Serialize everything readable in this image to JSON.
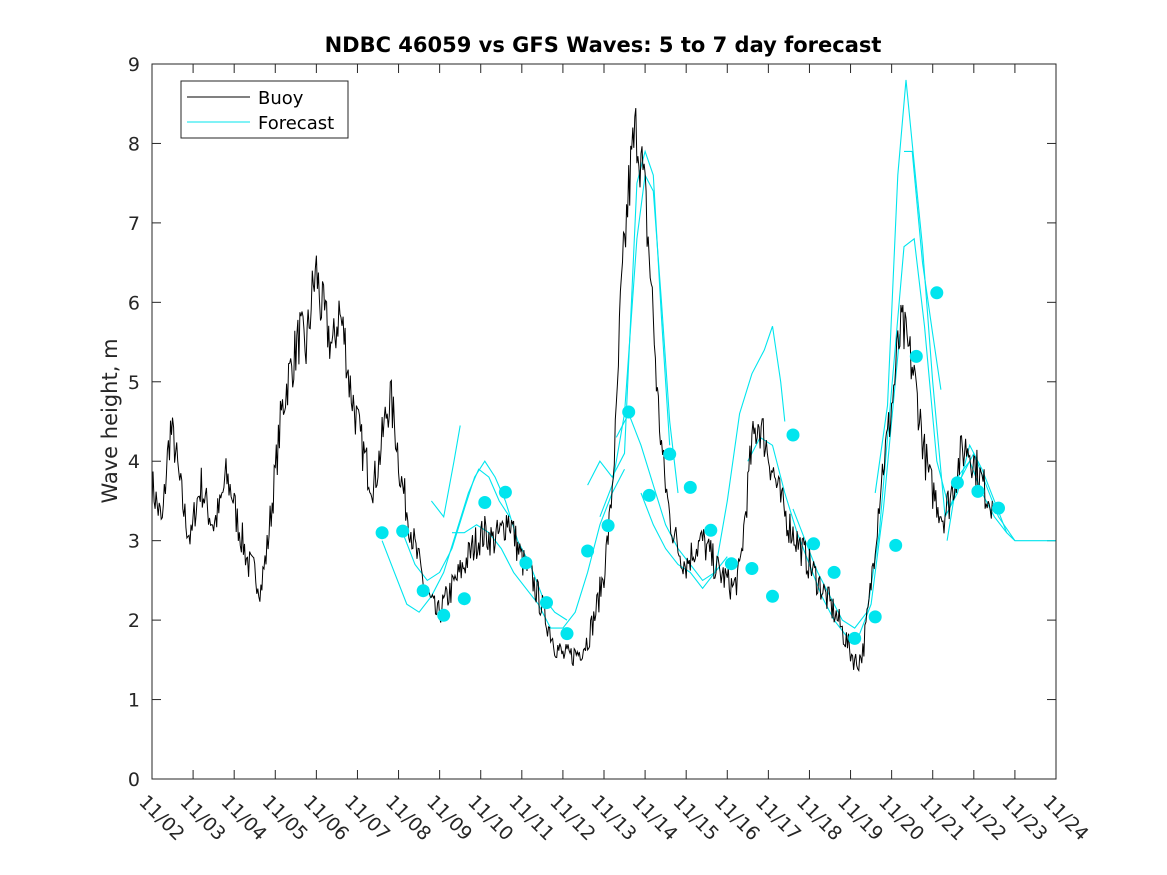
{
  "chart_data": {
    "type": "line",
    "title": "NDBC 46059 vs GFS Waves: 5 to 7 day forecast",
    "xlabel": "",
    "ylabel": "Wave height, m",
    "xlim": [
      0,
      22
    ],
    "ylim": [
      0,
      9
    ],
    "x_ticks": [
      "11/02",
      "11/03",
      "11/04",
      "11/05",
      "11/06",
      "11/07",
      "11/08",
      "11/09",
      "11/10",
      "11/11",
      "11/12",
      "11/13",
      "11/14",
      "11/15",
      "11/16",
      "11/17",
      "11/18",
      "11/19",
      "11/20",
      "11/21",
      "11/22",
      "11/23",
      "11/24"
    ],
    "y_ticks": [
      0,
      1,
      2,
      3,
      4,
      5,
      6,
      7,
      8,
      9
    ],
    "legend": {
      "position": "top-left",
      "entries": [
        "Buoy",
        "Forecast"
      ]
    },
    "colors": {
      "buoy": "#000000",
      "forecast": "#00e5ee"
    },
    "buoy_series": {
      "name": "Buoy",
      "points": [
        [
          0.0,
          3.7
        ],
        [
          0.1,
          3.5
        ],
        [
          0.25,
          3.2
        ],
        [
          0.35,
          3.9
        ],
        [
          0.45,
          4.4
        ],
        [
          0.55,
          4.2
        ],
        [
          0.65,
          3.8
        ],
        [
          0.8,
          3.3
        ],
        [
          0.95,
          3.0
        ],
        [
          1.05,
          3.4
        ],
        [
          1.2,
          3.7
        ],
        [
          1.35,
          3.4
        ],
        [
          1.5,
          3.2
        ],
        [
          1.65,
          3.4
        ],
        [
          1.8,
          3.8
        ],
        [
          1.95,
          3.6
        ],
        [
          2.05,
          3.3
        ],
        [
          2.2,
          3.0
        ],
        [
          2.35,
          2.7
        ],
        [
          2.5,
          2.6
        ],
        [
          2.65,
          2.4
        ],
        [
          2.8,
          2.9
        ],
        [
          2.95,
          3.6
        ],
        [
          3.05,
          4.1
        ],
        [
          3.15,
          4.6
        ],
        [
          3.3,
          5.0
        ],
        [
          3.45,
          5.3
        ],
        [
          3.6,
          5.6
        ],
        [
          3.75,
          5.4
        ],
        [
          3.9,
          6.1
        ],
        [
          4.0,
          6.4
        ],
        [
          4.1,
          6.0
        ],
        [
          4.25,
          5.7
        ],
        [
          4.4,
          5.4
        ],
        [
          4.55,
          5.9
        ],
        [
          4.7,
          5.5
        ],
        [
          4.8,
          5.0
        ],
        [
          4.95,
          4.6
        ],
        [
          5.1,
          4.2
        ],
        [
          5.25,
          3.9
        ],
        [
          5.4,
          3.7
        ],
        [
          5.55,
          4.1
        ],
        [
          5.7,
          4.6
        ],
        [
          5.8,
          4.8
        ],
        [
          5.95,
          4.3
        ],
        [
          6.05,
          3.8
        ],
        [
          6.2,
          3.4
        ],
        [
          6.4,
          2.9
        ],
        [
          6.6,
          2.5
        ],
        [
          6.8,
          2.2
        ],
        [
          6.95,
          2.05
        ],
        [
          7.1,
          2.2
        ],
        [
          7.3,
          2.4
        ],
        [
          7.5,
          2.6
        ],
        [
          7.7,
          2.8
        ],
        [
          7.9,
          3.0
        ],
        [
          8.1,
          3.1
        ],
        [
          8.3,
          3.0
        ],
        [
          8.5,
          3.1
        ],
        [
          8.65,
          3.3
        ],
        [
          8.75,
          3.2
        ],
        [
          8.9,
          2.9
        ],
        [
          9.05,
          2.7
        ],
        [
          9.2,
          2.6
        ],
        [
          9.4,
          2.3
        ],
        [
          9.6,
          2.0
        ],
        [
          9.8,
          1.7
        ],
        [
          10.0,
          1.55
        ],
        [
          10.2,
          1.55
        ],
        [
          10.4,
          1.6
        ],
        [
          10.6,
          1.75
        ],
        [
          10.8,
          2.1
        ],
        [
          11.0,
          2.6
        ],
        [
          11.15,
          3.3
        ],
        [
          11.3,
          4.5
        ],
        [
          11.4,
          5.9
        ],
        [
          11.5,
          6.7
        ],
        [
          11.6,
          7.4
        ],
        [
          11.7,
          7.9
        ],
        [
          11.8,
          8.2
        ],
        [
          11.9,
          7.8
        ],
        [
          12.0,
          7.3
        ],
        [
          12.1,
          6.6
        ],
        [
          12.2,
          5.8
        ],
        [
          12.3,
          4.8
        ],
        [
          12.45,
          3.9
        ],
        [
          12.6,
          3.3
        ],
        [
          12.8,
          2.9
        ],
        [
          13.0,
          2.7
        ],
        [
          13.2,
          2.9
        ],
        [
          13.4,
          3.0
        ],
        [
          13.6,
          2.8
        ],
        [
          13.8,
          2.6
        ],
        [
          14.0,
          2.5
        ],
        [
          14.15,
          2.4
        ],
        [
          14.3,
          2.6
        ],
        [
          14.45,
          3.4
        ],
        [
          14.6,
          4.2
        ],
        [
          14.75,
          4.5
        ],
        [
          14.9,
          4.3
        ],
        [
          15.1,
          3.9
        ],
        [
          15.3,
          3.5
        ],
        [
          15.5,
          3.2
        ],
        [
          15.7,
          3.0
        ],
        [
          15.9,
          2.8
        ],
        [
          16.1,
          2.6
        ],
        [
          16.3,
          2.4
        ],
        [
          16.5,
          2.2
        ],
        [
          16.7,
          2.0
        ],
        [
          16.85,
          1.8
        ],
        [
          17.0,
          1.6
        ],
        [
          17.15,
          1.45
        ],
        [
          17.3,
          1.6
        ],
        [
          17.45,
          2.2
        ],
        [
          17.6,
          3.0
        ],
        [
          17.75,
          3.8
        ],
        [
          17.9,
          4.3
        ],
        [
          18.05,
          4.9
        ],
        [
          18.15,
          5.4
        ],
        [
          18.25,
          5.7
        ],
        [
          18.35,
          5.5
        ],
        [
          18.5,
          5.2
        ],
        [
          18.65,
          4.7
        ],
        [
          18.8,
          4.1
        ],
        [
          18.95,
          3.7
        ],
        [
          19.1,
          3.5
        ],
        [
          19.25,
          3.3
        ],
        [
          19.4,
          3.5
        ],
        [
          19.55,
          3.8
        ],
        [
          19.7,
          4.1
        ],
        [
          19.85,
          4.2
        ],
        [
          20.0,
          4.0
        ],
        [
          20.15,
          3.8
        ],
        [
          20.3,
          3.6
        ],
        [
          20.45,
          3.5
        ]
      ]
    },
    "forecast_series": [
      {
        "name": "Forecast",
        "points": [
          [
            5.6,
            3.0
          ],
          [
            5.9,
            2.6
          ],
          [
            6.2,
            2.2
          ],
          [
            6.5,
            2.1
          ],
          [
            6.8,
            2.3
          ],
          [
            7.1,
            2.6
          ],
          [
            7.4,
            3.1
          ],
          [
            7.7,
            3.6
          ],
          [
            7.95,
            3.9
          ],
          [
            8.2,
            3.8
          ],
          [
            8.45,
            3.5
          ],
          [
            8.7,
            3.3
          ]
        ]
      },
      {
        "name": "Forecast",
        "points": [
          [
            6.1,
            3.1
          ],
          [
            6.4,
            2.7
          ],
          [
            6.7,
            2.5
          ],
          [
            7.0,
            2.6
          ],
          [
            7.3,
            2.9
          ],
          [
            7.6,
            3.4
          ],
          [
            7.85,
            3.8
          ],
          [
            8.1,
            4.0
          ],
          [
            8.35,
            3.8
          ],
          [
            8.6,
            3.5
          ],
          [
            8.9,
            3.0
          ],
          [
            9.2,
            2.7
          ],
          [
            9.5,
            2.3
          ],
          [
            9.8,
            2.1
          ],
          [
            10.1,
            2.0
          ]
        ]
      },
      {
        "name": "Forecast",
        "points": [
          [
            7.3,
            3.1
          ],
          [
            7.6,
            3.1
          ],
          [
            7.9,
            3.2
          ],
          [
            8.2,
            3.1
          ],
          [
            8.5,
            2.9
          ],
          [
            8.8,
            2.6
          ],
          [
            9.1,
            2.4
          ],
          [
            9.4,
            2.2
          ],
          [
            9.7,
            1.9
          ],
          [
            10.0,
            1.9
          ],
          [
            10.3,
            2.1
          ],
          [
            10.6,
            2.6
          ],
          [
            10.9,
            3.2
          ],
          [
            11.2,
            3.6
          ],
          [
            11.5,
            3.9
          ]
        ]
      },
      {
        "name": "Forecast",
        "points": [
          [
            6.8,
            3.5
          ],
          [
            7.1,
            3.3
          ],
          [
            7.35,
            4.0
          ],
          [
            7.5,
            4.45
          ]
        ]
      },
      {
        "name": "Forecast",
        "points": [
          [
            10.6,
            3.7
          ],
          [
            10.9,
            4.0
          ],
          [
            11.2,
            3.8
          ],
          [
            11.5,
            4.1
          ],
          [
            11.8,
            7.5
          ],
          [
            12.0,
            7.9
          ],
          [
            12.2,
            7.6
          ],
          [
            12.4,
            5.8
          ],
          [
            12.6,
            4.2
          ]
        ]
      },
      {
        "name": "Forecast",
        "points": [
          [
            10.9,
            3.3
          ],
          [
            11.2,
            3.7
          ],
          [
            11.5,
            4.6
          ],
          [
            11.8,
            6.8
          ],
          [
            12.0,
            7.6
          ],
          [
            12.2,
            7.4
          ],
          [
            12.4,
            6.0
          ],
          [
            12.6,
            4.5
          ],
          [
            12.8,
            3.6
          ]
        ]
      },
      {
        "name": "Forecast",
        "points": [
          [
            11.3,
            4.3
          ],
          [
            11.6,
            4.6
          ],
          [
            11.9,
            4.2
          ],
          [
            12.2,
            3.7
          ],
          [
            12.5,
            3.2
          ],
          [
            12.8,
            2.9
          ],
          [
            13.1,
            2.7
          ],
          [
            13.4,
            2.5
          ],
          [
            13.7,
            2.6
          ],
          [
            14.0,
            2.8
          ]
        ]
      },
      {
        "name": "Forecast",
        "points": [
          [
            11.9,
            3.6
          ],
          [
            12.2,
            3.2
          ],
          [
            12.5,
            2.9
          ],
          [
            12.8,
            2.7
          ],
          [
            13.1,
            2.6
          ],
          [
            13.4,
            2.4
          ],
          [
            13.7,
            2.6
          ],
          [
            14.0,
            3.5
          ],
          [
            14.3,
            4.6
          ],
          [
            14.6,
            5.1
          ],
          [
            14.9,
            5.4
          ],
          [
            15.1,
            5.7
          ],
          [
            15.3,
            5.0
          ],
          [
            15.4,
            4.5
          ]
        ]
      },
      {
        "name": "Forecast",
        "points": [
          [
            14.5,
            4.0
          ],
          [
            14.8,
            4.3
          ],
          [
            15.1,
            4.2
          ],
          [
            15.4,
            3.6
          ],
          [
            15.7,
            3.1
          ],
          [
            16.0,
            2.7
          ],
          [
            16.3,
            2.3
          ],
          [
            16.6,
            2.0
          ],
          [
            16.9,
            1.8
          ],
          [
            17.2,
            1.8
          ],
          [
            17.5,
            2.2
          ],
          [
            17.8,
            3.4
          ],
          [
            18.0,
            4.5
          ],
          [
            18.2,
            5.6
          ]
        ]
      },
      {
        "name": "Forecast",
        "points": [
          [
            15.6,
            3.4
          ],
          [
            15.9,
            3.0
          ],
          [
            16.2,
            2.6
          ],
          [
            16.5,
            2.3
          ],
          [
            16.8,
            2.0
          ],
          [
            17.1,
            1.9
          ],
          [
            17.4,
            2.1
          ],
          [
            17.7,
            3.1
          ],
          [
            18.0,
            4.9
          ],
          [
            18.3,
            6.7
          ],
          [
            18.55,
            6.8
          ],
          [
            18.8,
            5.7
          ],
          [
            19.1,
            4.0
          ],
          [
            19.4,
            3.4
          ],
          [
            19.7,
            3.8
          ],
          [
            20.0,
            4.1
          ],
          [
            20.3,
            3.7
          ],
          [
            20.6,
            3.3
          ],
          [
            21.0,
            3.0
          ]
        ]
      },
      {
        "name": "Forecast",
        "points": [
          [
            17.6,
            3.6
          ],
          [
            17.9,
            4.7
          ],
          [
            18.15,
            7.6
          ],
          [
            18.35,
            8.8
          ],
          [
            18.5,
            8.0
          ],
          [
            18.75,
            6.7
          ],
          [
            19.0,
            5.0
          ],
          [
            19.3,
            3.3
          ],
          [
            19.6,
            3.6
          ],
          [
            19.9,
            4.2
          ],
          [
            20.2,
            3.9
          ],
          [
            20.5,
            3.5
          ],
          [
            20.8,
            3.1
          ]
        ]
      },
      {
        "name": "Forecast",
        "points": [
          [
            18.3,
            7.9
          ],
          [
            18.5,
            7.9
          ],
          [
            18.75,
            6.5
          ],
          [
            19.0,
            5.6
          ],
          [
            19.2,
            4.9
          ]
        ]
      },
      {
        "name": "Forecast",
        "points": [
          [
            19.35,
            3.0
          ],
          [
            19.6,
            3.8
          ],
          [
            19.9,
            4.0
          ],
          [
            20.2,
            3.6
          ],
          [
            20.5,
            3.3
          ],
          [
            20.8,
            3.1
          ],
          [
            21.0,
            3.0
          ],
          [
            22.0,
            3.0
          ]
        ]
      }
    ],
    "forecast_markers": [
      [
        5.6,
        3.1
      ],
      [
        6.1,
        3.12
      ],
      [
        6.6,
        2.37
      ],
      [
        7.1,
        2.06
      ],
      [
        7.6,
        2.27
      ],
      [
        8.1,
        3.48
      ],
      [
        8.6,
        3.61
      ],
      [
        9.1,
        2.72
      ],
      [
        9.6,
        2.22
      ],
      [
        10.1,
        1.83
      ],
      [
        10.6,
        2.87
      ],
      [
        11.1,
        3.19
      ],
      [
        11.6,
        4.62
      ],
      [
        12.1,
        3.57
      ],
      [
        12.6,
        4.09
      ],
      [
        13.1,
        3.67
      ],
      [
        13.6,
        3.13
      ],
      [
        14.1,
        2.71
      ],
      [
        14.6,
        2.65
      ],
      [
        15.1,
        2.3
      ],
      [
        15.6,
        4.33
      ],
      [
        16.1,
        2.96
      ],
      [
        16.6,
        2.6
      ],
      [
        17.1,
        1.77
      ],
      [
        17.6,
        2.04
      ],
      [
        18.1,
        2.94
      ],
      [
        18.6,
        5.32
      ],
      [
        19.1,
        6.12
      ],
      [
        19.6,
        3.73
      ],
      [
        20.1,
        3.62
      ],
      [
        20.6,
        3.41
      ]
    ]
  }
}
